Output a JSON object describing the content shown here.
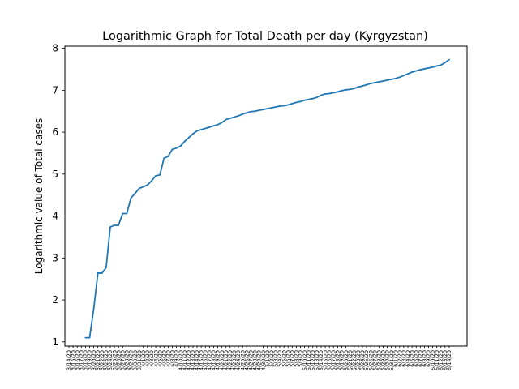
{
  "chart_data": {
    "type": "line",
    "title": "Logarithmic Graph for Total Death per day (Kyrgyzstan)",
    "xlabel": "",
    "ylabel": "Logarithmic value of Total cases",
    "ylim": [
      0.9,
      8.05
    ],
    "yticks": [
      1,
      2,
      3,
      4,
      5,
      6,
      7,
      8
    ],
    "grid": false,
    "series_color": "#1f77b4",
    "categories": [
      "3/14/20",
      "3/15/20",
      "3/16/20",
      "3/17/20",
      "3/18/20",
      "3/19/20",
      "3/20/20",
      "3/21/20",
      "3/22/20",
      "3/23/20",
      "3/24/20",
      "3/25/20",
      "3/26/20",
      "3/27/20",
      "3/28/20",
      "3/29/20",
      "3/30/20",
      "3/31/20",
      "4/1/20",
      "4/2/20",
      "4/3/20",
      "4/4/20",
      "4/5/20",
      "4/6/20",
      "4/7/20",
      "4/8/20",
      "4/9/20",
      "4/10/20",
      "4/11/20",
      "4/12/20",
      "4/13/20",
      "4/14/20",
      "4/15/20",
      "4/16/20",
      "4/17/20",
      "4/18/20",
      "4/19/20",
      "4/20/20",
      "4/21/20",
      "4/22/20",
      "4/23/20",
      "4/24/20",
      "4/25/20",
      "4/26/20",
      "4/27/20",
      "4/28/20",
      "4/29/20",
      "4/30/20",
      "5/1/20",
      "5/2/20",
      "5/3/20",
      "5/4/20",
      "5/5/20",
      "5/6/20",
      "5/7/20",
      "5/8/20",
      "5/9/20",
      "5/10/20",
      "5/11/20",
      "5/12/20",
      "5/13/20",
      "5/14/20",
      "5/15/20",
      "5/16/20",
      "5/17/20",
      "5/18/20",
      "5/19/20",
      "5/20/20",
      "5/21/20",
      "5/22/20",
      "5/23/20",
      "5/24/20",
      "5/25/20",
      "5/26/20",
      "5/27/20",
      "5/28/20",
      "5/29/20",
      "5/30/20",
      "5/31/20",
      "6/1/20",
      "6/2/20",
      "6/3/20",
      "6/4/20",
      "6/5/20",
      "6/6/20",
      "6/7/20",
      "6/8/20",
      "6/9/20",
      "6/10/20",
      "6/11/20",
      "6/12/20",
      "6/13/20",
      "6/14/20"
    ],
    "values": [
      null,
      null,
      null,
      null,
      1.1,
      1.1,
      1.79,
      2.64,
      2.64,
      2.77,
      3.74,
      3.78,
      3.78,
      4.06,
      4.06,
      4.43,
      4.54,
      4.66,
      4.7,
      4.74,
      4.84,
      4.96,
      4.98,
      5.38,
      5.42,
      5.59,
      5.62,
      5.67,
      5.78,
      5.87,
      5.96,
      6.03,
      6.06,
      6.09,
      6.12,
      6.15,
      6.18,
      6.23,
      6.3,
      6.33,
      6.36,
      6.39,
      6.43,
      6.46,
      6.49,
      6.5,
      6.52,
      6.54,
      6.56,
      6.58,
      6.6,
      6.62,
      6.63,
      6.65,
      6.68,
      6.71,
      6.73,
      6.76,
      6.78,
      6.8,
      6.83,
      6.88,
      6.91,
      6.92,
      6.94,
      6.96,
      6.99,
      7.01,
      7.02,
      7.04,
      7.08,
      7.1,
      7.13,
      7.16,
      7.18,
      7.2,
      7.22,
      7.24,
      7.26,
      7.28,
      7.31,
      7.35,
      7.39,
      7.43,
      7.46,
      7.49,
      7.51,
      7.53,
      7.55,
      7.58,
      7.6,
      7.66,
      7.73
    ]
  }
}
